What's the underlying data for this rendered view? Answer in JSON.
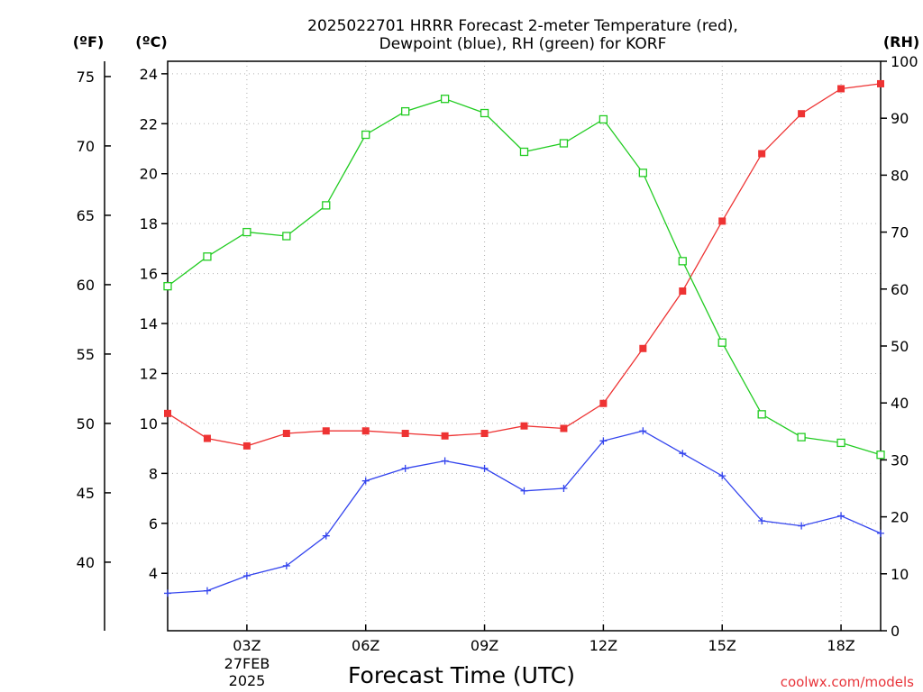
{
  "chart_data": {
    "type": "line",
    "title_line1": "2025022701 HRRR Forecast 2-meter Temperature (red),",
    "title_line2": "Dewpoint (blue), RH (green) for KORF",
    "units": {
      "left_outer": "(ºF)",
      "left_inner": "(ºC)",
      "right": "(RH)"
    },
    "xlabel": "Forecast Time (UTC)",
    "credit": "coolwx.com/models",
    "date_label": {
      "line1": "27FEB",
      "line2": "2025"
    },
    "x_hours": [
      1,
      2,
      3,
      4,
      5,
      6,
      7,
      8,
      9,
      10,
      11,
      12,
      13,
      14,
      15,
      16,
      17,
      18,
      19
    ],
    "x_ticks": [
      {
        "hour": 3,
        "label": "03Z"
      },
      {
        "hour": 6,
        "label": "06Z"
      },
      {
        "hour": 9,
        "label": "09Z"
      },
      {
        "hour": 12,
        "label": "12Z"
      },
      {
        "hour": 15,
        "label": "15Z"
      },
      {
        "hour": 18,
        "label": "18Z"
      }
    ],
    "xlim": [
      1,
      19
    ],
    "ylim_c": [
      1.7,
      24.5
    ],
    "ylim_rh": [
      0,
      100
    ],
    "c_ticks": [
      "4",
      "6",
      "8",
      "10",
      "12",
      "14",
      "16",
      "18",
      "20",
      "22",
      "24"
    ],
    "f_ticks": [
      "40",
      "45",
      "50",
      "55",
      "60",
      "65",
      "70",
      "75"
    ],
    "rh_ticks": [
      "0",
      "10",
      "20",
      "30",
      "40",
      "50",
      "60",
      "70",
      "80",
      "90",
      "100"
    ],
    "series": [
      {
        "name": "Temperature",
        "unit": "C",
        "color": "#ee3333",
        "marker": "filled-square",
        "values": [
          10.4,
          9.4,
          9.1,
          9.6,
          9.7,
          9.7,
          9.6,
          9.5,
          9.6,
          9.9,
          9.8,
          10.8,
          13.0,
          15.3,
          18.1,
          20.8,
          22.4,
          23.4,
          23.6
        ]
      },
      {
        "name": "Dewpoint",
        "unit": "C",
        "color": "#3344ee",
        "marker": "plus",
        "values": [
          3.2,
          3.3,
          3.9,
          4.3,
          5.5,
          7.7,
          8.2,
          8.5,
          8.2,
          7.3,
          7.4,
          9.3,
          9.7,
          8.8,
          7.9,
          6.1,
          5.9,
          6.3,
          5.6
        ]
      },
      {
        "name": "RH",
        "unit": "%",
        "color": "#22cc22",
        "marker": "open-square",
        "values": [
          60.5,
          65.7,
          70.0,
          69.3,
          74.7,
          87.1,
          91.2,
          93.4,
          90.9,
          84.1,
          85.6,
          89.8,
          80.4,
          64.9,
          50.6,
          38.0,
          34.0,
          33.0,
          30.9
        ]
      }
    ]
  }
}
